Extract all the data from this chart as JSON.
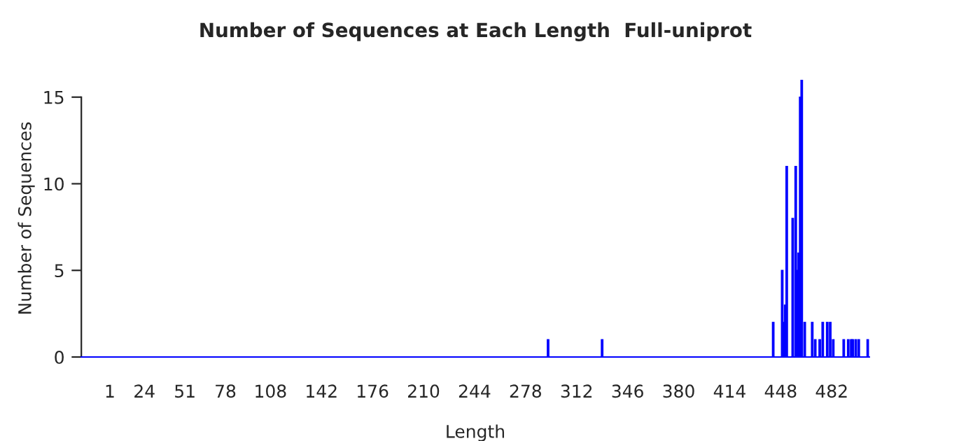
{
  "chart_data": {
    "type": "bar",
    "title": "Number of Sequences at Each Length  Full-uniprot",
    "xlabel": "Length",
    "ylabel": "Number of Sequences",
    "x": [
      293,
      329,
      443,
      449,
      450,
      451,
      452,
      456,
      458,
      459,
      460,
      461,
      462,
      464,
      469,
      471,
      474,
      476,
      479,
      481,
      483,
      490,
      493,
      495,
      496,
      498,
      500,
      506
    ],
    "values": [
      1,
      1,
      2,
      5,
      2,
      3,
      11,
      8,
      11,
      5,
      6,
      15,
      16,
      2,
      2,
      1,
      1,
      2,
      2,
      2,
      1,
      1,
      1,
      1,
      1,
      1,
      1,
      1
    ],
    "color": "#0000ff",
    "xlim": [
      -18,
      507
    ],
    "xticks": [
      1,
      24,
      51,
      78,
      108,
      142,
      176,
      210,
      244,
      278,
      312,
      346,
      380,
      414,
      448,
      482
    ],
    "ylim": [
      0,
      16
    ],
    "yticks": [
      0,
      5,
      10,
      15
    ],
    "grid": false,
    "legend": false
  }
}
